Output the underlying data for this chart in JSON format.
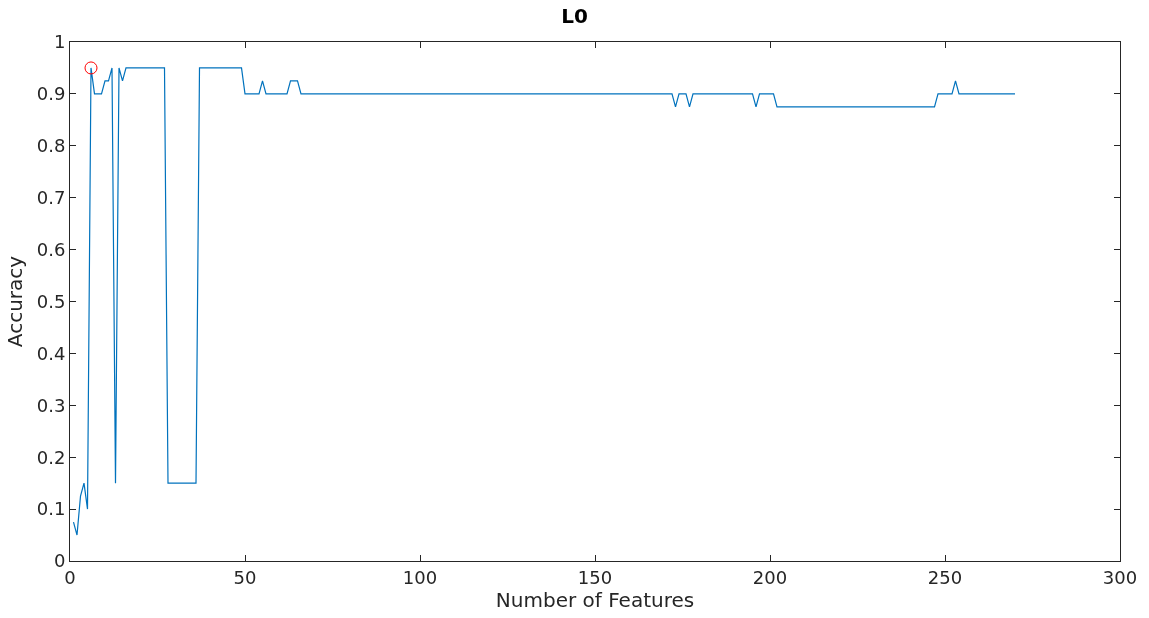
{
  "chart_data": {
    "type": "line",
    "title": "L0",
    "xlabel": "Number of Features",
    "ylabel": "Accuracy",
    "xlim": [
      0,
      300
    ],
    "xticks": [
      0,
      50,
      100,
      150,
      200,
      250,
      300
    ],
    "ylim": [
      0,
      1
    ],
    "yticks": [
      0,
      0.1,
      0.2,
      0.3,
      0.4,
      0.5,
      0.6,
      0.7,
      0.8,
      0.9,
      1
    ],
    "series": [
      {
        "color": "#0072bd",
        "marker": "none",
        "line_style": "solid",
        "x": [
          1,
          2,
          3,
          4,
          5,
          6,
          7,
          9,
          10,
          11,
          12,
          13,
          14,
          15,
          16,
          27,
          28,
          36,
          37,
          49,
          50,
          54,
          55,
          56,
          62,
          63,
          65,
          66,
          172,
          173,
          174,
          176,
          177,
          178,
          195,
          196,
          197,
          201,
          202,
          247,
          248,
          252,
          253,
          254,
          270
        ],
        "values": [
          0.075,
          0.05,
          0.125,
          0.15,
          0.1,
          0.95,
          0.9,
          0.9,
          0.925,
          0.925,
          0.95,
          0.15,
          0.95,
          0.925,
          0.95,
          0.95,
          0.15,
          0.15,
          0.95,
          0.95,
          0.9,
          0.9,
          0.925,
          0.9,
          0.9,
          0.925,
          0.925,
          0.9,
          0.9,
          0.875,
          0.9,
          0.9,
          0.875,
          0.9,
          0.9,
          0.875,
          0.9,
          0.9,
          0.875,
          0.875,
          0.9,
          0.9,
          0.925,
          0.9,
          0.9
        ]
      },
      {
        "type": "scatter",
        "color": "#ff0000",
        "marker": "circle",
        "x": [
          6
        ],
        "values": [
          0.95
        ]
      }
    ]
  }
}
